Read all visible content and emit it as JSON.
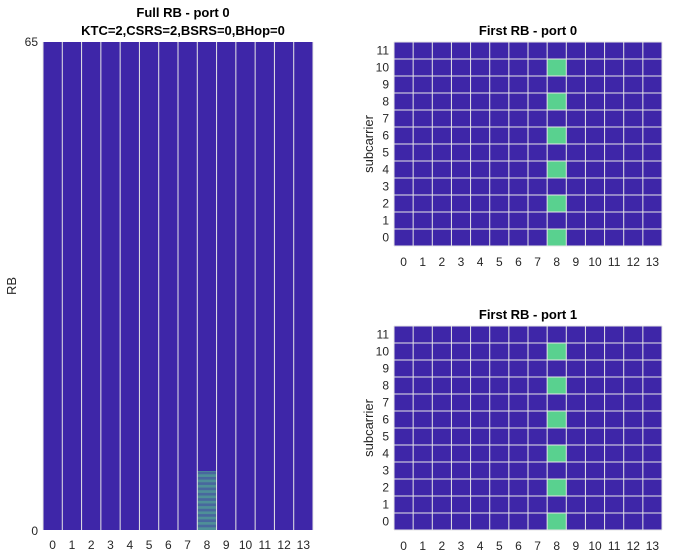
{
  "colors": {
    "background_cell": "#3e26a8",
    "active_cell": "#59d18f",
    "grid_line": "#e6e6e6",
    "text": "#262626"
  },
  "chart_data": [
    {
      "type": "heatmap",
      "title": "Full RB - port 0",
      "subtitle": "KTC=2,CSRS=2,BSRS=0,BHop=0",
      "xlabel": "",
      "ylabel": "RB",
      "x_ticks": [
        0,
        1,
        2,
        3,
        4,
        5,
        6,
        7,
        8,
        9,
        10,
        11,
        12,
        13
      ],
      "y_tick_labels": [
        "0",
        "65"
      ],
      "symbols": 14,
      "rows": 792,
      "active": {
        "symbol": 8,
        "row_start": 0,
        "row_end": 95,
        "pattern": "every-other-row"
      },
      "grid": "vertical-only"
    },
    {
      "type": "heatmap",
      "title": "First RB - port 0",
      "xlabel": "",
      "ylabel": "subcarrier",
      "x_ticks": [
        0,
        1,
        2,
        3,
        4,
        5,
        6,
        7,
        8,
        9,
        10,
        11,
        12,
        13
      ],
      "y_ticks": [
        0,
        1,
        2,
        3,
        4,
        5,
        6,
        7,
        8,
        9,
        10,
        11
      ],
      "active_cells": [
        [
          8,
          0
        ],
        [
          8,
          2
        ],
        [
          8,
          4
        ],
        [
          8,
          6
        ],
        [
          8,
          8
        ],
        [
          8,
          10
        ]
      ],
      "grid": "on"
    },
    {
      "type": "heatmap",
      "title": "First RB - port 1",
      "xlabel": "",
      "ylabel": "subcarrier",
      "x_ticks": [
        0,
        1,
        2,
        3,
        4,
        5,
        6,
        7,
        8,
        9,
        10,
        11,
        12,
        13
      ],
      "y_ticks": [
        0,
        1,
        2,
        3,
        4,
        5,
        6,
        7,
        8,
        9,
        10,
        11
      ],
      "active_cells": [
        [
          8,
          0
        ],
        [
          8,
          2
        ],
        [
          8,
          4
        ],
        [
          8,
          6
        ],
        [
          8,
          8
        ],
        [
          8,
          10
        ]
      ],
      "grid": "on"
    }
  ]
}
